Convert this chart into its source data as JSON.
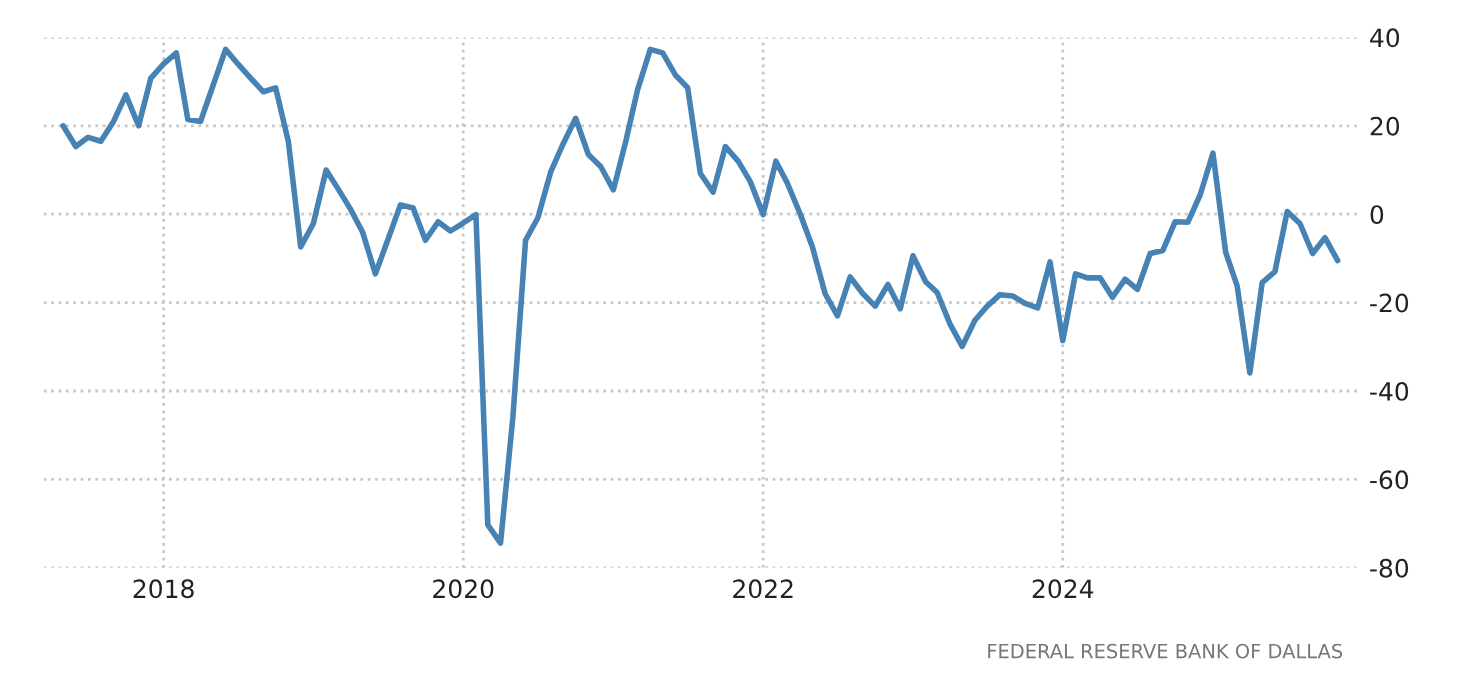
{
  "chart_data": {
    "type": "line",
    "x": [
      "2017-05",
      "2017-06",
      "2017-07",
      "2017-08",
      "2017-09",
      "2017-10",
      "2017-11",
      "2017-12",
      "2018-01",
      "2018-02",
      "2018-03",
      "2018-04",
      "2018-05",
      "2018-06",
      "2018-07",
      "2018-08",
      "2018-09",
      "2018-10",
      "2018-11",
      "2018-12",
      "2019-01",
      "2019-02",
      "2019-03",
      "2019-04",
      "2019-05",
      "2019-06",
      "2019-07",
      "2019-08",
      "2019-09",
      "2019-10",
      "2019-11",
      "2019-12",
      "2020-01",
      "2020-02",
      "2020-03",
      "2020-04",
      "2020-05",
      "2020-06",
      "2020-07",
      "2020-08",
      "2020-09",
      "2020-10",
      "2020-11",
      "2020-12",
      "2021-01",
      "2021-02",
      "2021-03",
      "2021-04",
      "2021-05",
      "2021-06",
      "2021-07",
      "2021-08",
      "2021-09",
      "2021-10",
      "2021-11",
      "2021-12",
      "2022-01",
      "2022-02",
      "2022-03",
      "2022-04",
      "2022-05",
      "2022-06",
      "2022-07",
      "2022-08",
      "2022-09",
      "2022-10",
      "2022-11",
      "2022-12",
      "2023-01",
      "2023-02",
      "2023-03",
      "2023-04",
      "2023-05",
      "2023-06",
      "2023-07",
      "2023-08",
      "2023-09",
      "2023-10",
      "2023-11",
      "2023-12",
      "2024-01",
      "2024-02",
      "2024-03",
      "2024-04",
      "2024-05",
      "2024-06",
      "2024-07",
      "2024-08",
      "2024-09",
      "2024-10",
      "2024-11",
      "2024-12",
      "2025-01",
      "2025-02",
      "2025-03",
      "2025-04",
      "2025-05",
      "2025-06",
      "2025-07",
      "2025-08",
      "2025-09",
      "2025-10",
      "2025-11"
    ],
    "series": [
      {
        "color": "#4682b4",
        "values": [
          20,
          15.3,
          17.4,
          16.5,
          21,
          27,
          20,
          30.8,
          34,
          36.5,
          21.4,
          21,
          29,
          37.3,
          34,
          30.8,
          27.7,
          28.6,
          16.4,
          -7.4,
          -2.1,
          10,
          5.9,
          1.2,
          -4.1,
          -13.5,
          -5.9,
          2.1,
          1.4,
          -5.9,
          -1.7,
          -3.8,
          -2,
          -0.1,
          -70.3,
          -74.4,
          -46,
          -5.9,
          -0.8,
          9.5,
          16,
          21.7,
          13.5,
          10.8,
          5.5,
          16.8,
          28.2,
          37.3,
          36.5,
          31.5,
          28.6,
          9.2,
          5,
          15.3,
          12,
          7.3,
          -0.1,
          12,
          7,
          0.1,
          -7.4,
          -18,
          -23,
          -14.2,
          -18,
          -20.8,
          -15.9,
          -21.4,
          -9.4,
          -15.3,
          -17.7,
          -24.8,
          -29.9,
          -24,
          -20.8,
          -18.2,
          -18.5,
          -20.2,
          -21.2,
          -10.8,
          -28.6,
          -13.5,
          -14.4,
          -14.4,
          -18.8,
          -14.7,
          -17,
          -8.9,
          -8.2,
          -1.7,
          -1.8,
          4.4,
          13.8,
          -8.6,
          -16.2,
          -35.9,
          -15.5,
          -13,
          0.6,
          -2.1,
          -8.9,
          -5.3,
          -10.5
        ]
      }
    ],
    "xlim": [
      "2017-03-15",
      "2025-12-20"
    ],
    "xticks": [
      {
        "value": "2018",
        "label": "2018"
      },
      {
        "value": "2020",
        "label": "2020"
      },
      {
        "value": "2022",
        "label": "2022"
      },
      {
        "value": "2024",
        "label": "2024"
      }
    ],
    "ylim": [
      -80,
      40
    ],
    "yticks": [
      -80,
      -60,
      -40,
      -20,
      0,
      20,
      40
    ],
    "grid": true,
    "line_style": "solid",
    "marker": "none",
    "annotations": [
      "FEDERAL RESERVE BANK OF DALLAS"
    ]
  }
}
